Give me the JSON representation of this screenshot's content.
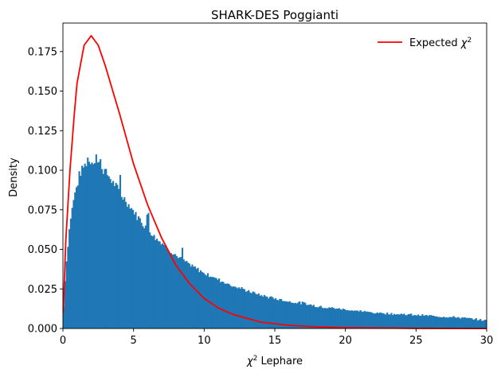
{
  "chart_data": {
    "type": "bar",
    "title": "SHARK-DES Poggianti",
    "xlabel": "χ² Lephare",
    "xlabel_parts": {
      "symbol": "χ",
      "superscript": "2",
      "rest": " Lephare"
    },
    "ylabel": "Density",
    "xlim": [
      0,
      30
    ],
    "ylim": [
      0,
      0.193
    ],
    "xticks": [
      "0",
      "5",
      "10",
      "15",
      "20",
      "25",
      "30"
    ],
    "yticks": [
      "0.000",
      "0.025",
      "0.050",
      "0.075",
      "0.100",
      "0.125",
      "0.150",
      "0.175"
    ],
    "grid": false,
    "legend_position": "top-right",
    "legend": [
      {
        "label": "Expected χ²",
        "label_parts": {
          "text": "Expected ",
          "symbol": "χ",
          "superscript": "2"
        },
        "color": "#ff0000",
        "kind": "line"
      }
    ],
    "histogram": {
      "name": "",
      "color": "#1f77b4",
      "bin_width": 0.1,
      "x_start": 0,
      "anchors_x": [
        0,
        0.1,
        0.2,
        0.3,
        0.4,
        0.5,
        0.6,
        0.7,
        0.8,
        0.9,
        1.0,
        1.2,
        1.5,
        1.8,
        2.0,
        2.2,
        2.5,
        2.8,
        3.0,
        3.5,
        4.0,
        4.5,
        5.0,
        5.5,
        6.0,
        6.5,
        7.0,
        7.5,
        8.0,
        9.0,
        10.0,
        11.0,
        12.0,
        13.0,
        14.0,
        15.0,
        16.0,
        17.0,
        18.0,
        19.0,
        20.0,
        22.0,
        24.0,
        26.0,
        28.0,
        30.0
      ],
      "anchors_y": [
        0.003,
        0.024,
        0.038,
        0.047,
        0.058,
        0.067,
        0.073,
        0.079,
        0.084,
        0.087,
        0.091,
        0.098,
        0.103,
        0.105,
        0.106,
        0.106,
        0.104,
        0.101,
        0.099,
        0.093,
        0.086,
        0.08,
        0.074,
        0.068,
        0.063,
        0.058,
        0.054,
        0.05,
        0.046,
        0.04,
        0.035,
        0.031,
        0.027,
        0.024,
        0.021,
        0.019,
        0.017,
        0.016,
        0.014,
        0.013,
        0.012,
        0.01,
        0.009,
        0.008,
        0.007,
        0.005
      ],
      "highlights": [
        {
          "x": 2.3,
          "y": 0.11
        },
        {
          "x": 2.6,
          "y": 0.107
        },
        {
          "x": 1.7,
          "y": 0.108
        },
        {
          "x": 4.0,
          "y": 0.097
        },
        {
          "x": 5.9,
          "y": 0.072
        },
        {
          "x": 6.0,
          "y": 0.073
        },
        {
          "x": 8.4,
          "y": 0.051
        }
      ]
    },
    "series": [
      {
        "name": "Expected χ²",
        "color": "#ff0000",
        "x": [
          0.02,
          0.2,
          0.5,
          0.8,
          1.0,
          1.5,
          2.0,
          2.5,
          3.0,
          4.0,
          5.0,
          6.0,
          7.0,
          8.0,
          9.0,
          10.0,
          11.0,
          12.0,
          14.0,
          16.0,
          18.0,
          20.0,
          25.0,
          30.0
        ],
        "y": [
          0.01,
          0.055,
          0.1,
          0.135,
          0.155,
          0.179,
          0.185,
          0.179,
          0.166,
          0.136,
          0.104,
          0.078,
          0.057,
          0.04,
          0.028,
          0.019,
          0.013,
          0.009,
          0.004,
          0.002,
          0.001,
          0.0005,
          0.0001,
          0.0
        ]
      }
    ]
  }
}
